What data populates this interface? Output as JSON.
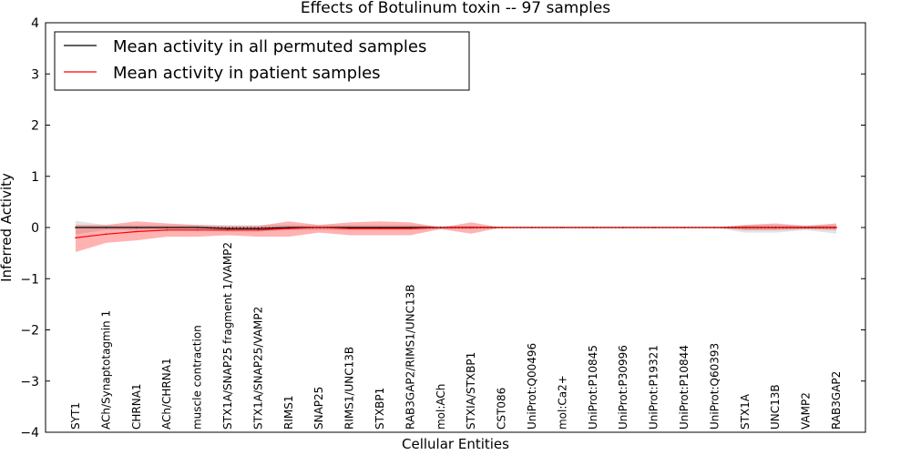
{
  "chart_data": {
    "type": "line",
    "title": "Effects of Botulinum toxin -- 97 samples",
    "xlabel": "Cellular Entities",
    "ylabel": "Inferred Activity",
    "ylim": [
      -4,
      4
    ],
    "yticks": [
      4,
      3,
      2,
      1,
      0,
      -1,
      -2,
      -3,
      -4
    ],
    "ytick_labels": [
      "4",
      "3",
      "2",
      "1",
      "0",
      "−1",
      "−2",
      "−3",
      "−4"
    ],
    "grid": false,
    "legend_position": "top-left",
    "categories": [
      "SYT1",
      "ACh/Synaptotagmin 1",
      "CHRNA1",
      "ACh/CHRNA1",
      "muscle contraction",
      "STX1A/SNAP25 fragment 1/VAMP2",
      "STX1A/SNAP25/VAMP2",
      "RIMS1",
      "SNAP25",
      "RIMS1/UNC13B",
      "STXBP1",
      "RAB3GAP2/RIMS1/UNC13B",
      "mol:ACh",
      "STXIA/STXBP1",
      "CST086",
      "UniProt:Q00496",
      "mol:Ca2+",
      "UniProt:P10845",
      "UniProt:P30996",
      "UniProt:P19321",
      "UniProt:P10844",
      "UniProt:Q60393",
      "STX1A",
      "UNC13B",
      "VAMP2",
      "RAB3GAP2"
    ],
    "series": [
      {
        "name": "Mean activity in all permuted samples",
        "color": "#000000",
        "values": [
          0.0,
          0.0,
          0.0,
          0.0,
          0.0,
          -0.02,
          -0.02,
          0.0,
          0.0,
          0.0,
          0.0,
          0.0,
          0.0,
          0.0,
          0.0,
          0.0,
          0.0,
          0.0,
          0.0,
          0.0,
          0.0,
          0.0,
          0.0,
          0.0,
          0.0,
          0.0
        ],
        "band_upper": [
          0.13,
          0.05,
          0.05,
          0.05,
          0.05,
          0.05,
          0.05,
          0.05,
          0.05,
          0.05,
          0.05,
          0.05,
          0.03,
          0.03,
          0.0,
          0.0,
          0.0,
          0.0,
          0.0,
          0.0,
          0.0,
          0.0,
          0.05,
          0.05,
          0.05,
          0.05
        ],
        "band_lower": [
          -0.13,
          -0.05,
          -0.05,
          -0.05,
          -0.05,
          -0.08,
          -0.08,
          -0.05,
          -0.05,
          -0.05,
          -0.05,
          -0.05,
          -0.03,
          -0.03,
          0.0,
          0.0,
          0.0,
          0.0,
          0.0,
          0.0,
          0.0,
          0.0,
          -0.1,
          -0.1,
          -0.05,
          -0.12
        ]
      },
      {
        "name": "Mean activity in patient samples",
        "color": "#ff0000",
        "values": [
          -0.2,
          -0.13,
          -0.08,
          -0.05,
          -0.05,
          -0.05,
          -0.05,
          -0.02,
          0.0,
          -0.02,
          -0.02,
          -0.02,
          0.0,
          0.0,
          0.0,
          0.0,
          0.0,
          0.0,
          0.0,
          0.0,
          0.0,
          0.0,
          0.0,
          0.0,
          0.0,
          0.0
        ],
        "band_upper": [
          0.05,
          0.05,
          0.12,
          0.08,
          0.05,
          0.03,
          0.03,
          0.12,
          0.05,
          0.1,
          0.12,
          0.1,
          0.0,
          0.1,
          0.0,
          0.0,
          0.0,
          0.0,
          0.0,
          0.0,
          0.0,
          0.0,
          0.05,
          0.08,
          0.03,
          0.08
        ],
        "band_lower": [
          -0.48,
          -0.3,
          -0.25,
          -0.18,
          -0.18,
          -0.15,
          -0.18,
          -0.18,
          -0.1,
          -0.15,
          -0.15,
          -0.15,
          -0.03,
          -0.12,
          0.0,
          0.0,
          0.0,
          0.0,
          0.0,
          0.0,
          0.0,
          0.0,
          -0.05,
          -0.05,
          -0.03,
          -0.05
        ]
      }
    ]
  }
}
